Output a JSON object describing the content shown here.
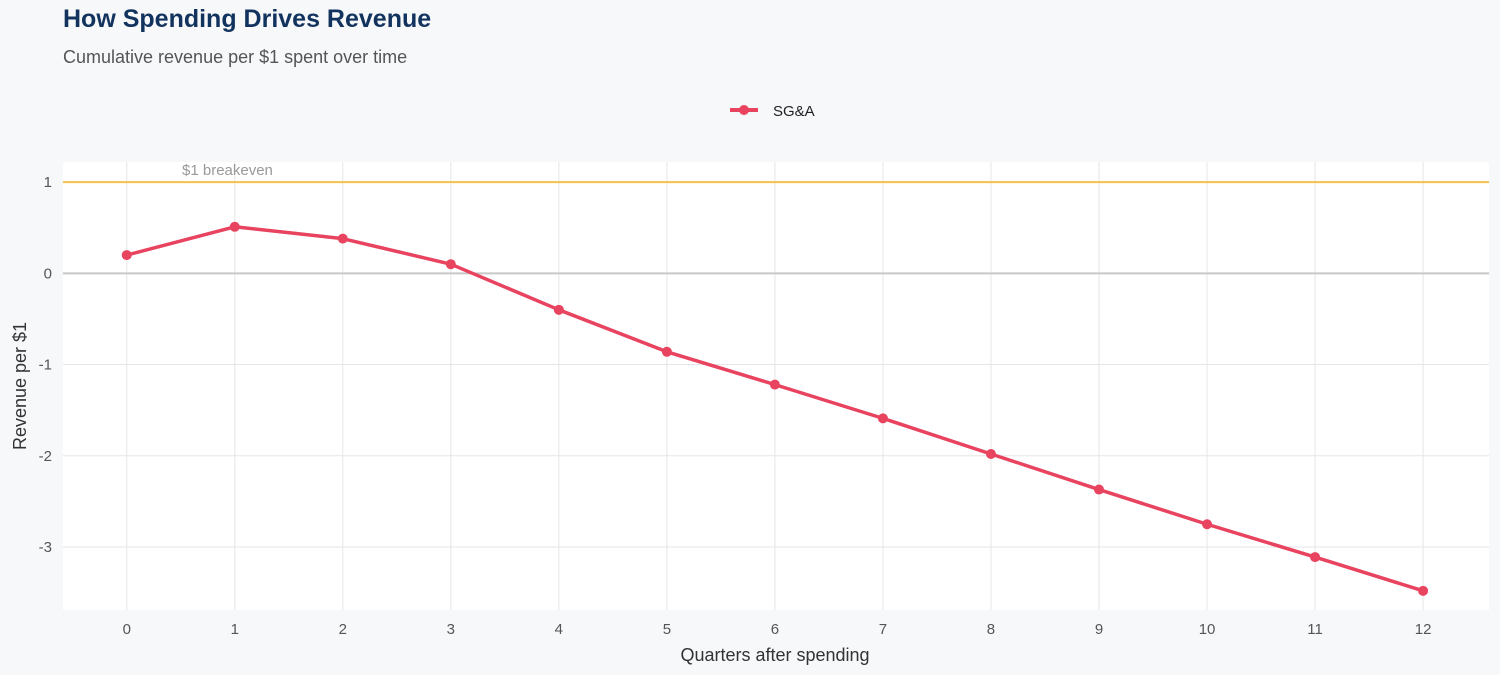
{
  "chart_data": {
    "type": "line",
    "title": "How Spending Drives Revenue",
    "subtitle": "Cumulative revenue per $1 spent over time",
    "xlabel": "Quarters after spending",
    "ylabel": "Revenue per $1",
    "x": [
      0,
      1,
      2,
      3,
      4,
      5,
      6,
      7,
      8,
      9,
      10,
      11,
      12
    ],
    "series": [
      {
        "name": "SG&A",
        "color": "#e8435f",
        "values": [
          0.2,
          0.51,
          0.38,
          0.1,
          -0.4,
          -0.86,
          -1.22,
          -1.59,
          -1.98,
          -2.37,
          -2.75,
          -3.11,
          -3.48
        ]
      }
    ],
    "xlim": [
      -0.59,
      12.61
    ],
    "ylim": [
      -3.69,
      1.22
    ],
    "xticks": [
      "0",
      "1",
      "2",
      "3",
      "4",
      "5",
      "6",
      "7",
      "8",
      "9",
      "10",
      "11",
      "12"
    ],
    "yticks": [
      {
        "value": 1,
        "label": "1"
      },
      {
        "value": 0,
        "label": "0"
      },
      {
        "value": -1,
        "label": "-1"
      },
      {
        "value": -2,
        "label": "-2"
      },
      {
        "value": -3,
        "label": "-3"
      }
    ],
    "reference_line": {
      "value": 1,
      "label": "$1 breakeven",
      "color": "#f2c14e"
    },
    "zero_line_color": "#c8c8c8",
    "grid": true,
    "legend_position": "top"
  }
}
